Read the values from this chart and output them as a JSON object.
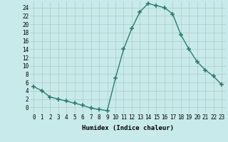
{
  "x": [
    0,
    1,
    2,
    3,
    4,
    5,
    6,
    7,
    8,
    9,
    10,
    11,
    12,
    13,
    14,
    15,
    16,
    17,
    18,
    19,
    20,
    21,
    22,
    23
  ],
  "y": [
    5.0,
    4.0,
    2.5,
    2.0,
    1.5,
    1.0,
    0.5,
    -0.2,
    -0.5,
    -0.8,
    7.0,
    14.0,
    19.0,
    23.0,
    25.0,
    24.5,
    24.0,
    22.5,
    17.5,
    14.0,
    11.0,
    9.0,
    7.5,
    5.5
  ],
  "line_color": "#2e7d6e",
  "marker": "+",
  "marker_size": 4,
  "marker_lw": 1.2,
  "bg_color": "#c8eaea",
  "grid_color": "#b0c8c8",
  "xlabel": "Humidex (Indice chaleur)",
  "xlim": [
    -0.5,
    23.5
  ],
  "ylim": [
    -1.5,
    25.5
  ],
  "yticks": [
    0,
    2,
    4,
    6,
    8,
    10,
    12,
    14,
    16,
    18,
    20,
    22,
    24
  ],
  "ytick_labels": [
    "0",
    "2",
    "4",
    "6",
    "8",
    "10",
    "12",
    "14",
    "16",
    "18",
    "20",
    "22",
    "24"
  ],
  "xticks": [
    0,
    1,
    2,
    3,
    4,
    5,
    6,
    7,
    8,
    9,
    10,
    11,
    12,
    13,
    14,
    15,
    16,
    17,
    18,
    19,
    20,
    21,
    22,
    23
  ],
  "xtick_labels": [
    "0",
    "1",
    "2",
    "3",
    "4",
    "5",
    "6",
    "7",
    "8",
    "9",
    "10",
    "11",
    "12",
    "13",
    "14",
    "15",
    "16",
    "17",
    "18",
    "19",
    "20",
    "21",
    "22",
    "23"
  ],
  "label_fontsize": 6.5,
  "tick_fontsize": 5.5,
  "line_width": 1.0
}
